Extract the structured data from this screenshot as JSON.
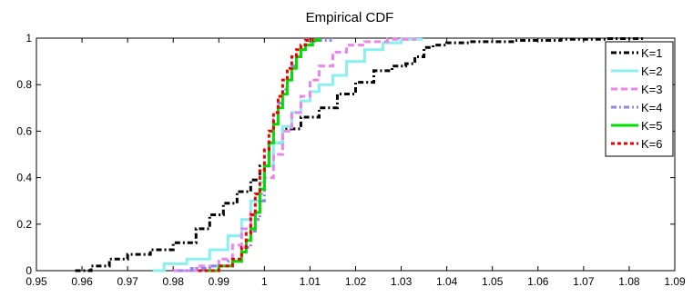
{
  "chart_data": {
    "type": "line",
    "title": "Empirical CDF",
    "xlabel": "",
    "ylabel": "",
    "xlim": [
      0.95,
      1.09
    ],
    "ylim": [
      0,
      1
    ],
    "xticks": [
      "0.95",
      "0.96",
      "0.97",
      "0.98",
      "0.99",
      "1",
      "1.01",
      "1.02",
      "1.03",
      "1.04",
      "1.05",
      "1.06",
      "1.07",
      "1.08",
      "1.09"
    ],
    "yticks": [
      "0",
      "0.2",
      "0.4",
      "0.6",
      "0.8",
      "1"
    ],
    "grid": false,
    "legend_position": "top-right",
    "series": [
      {
        "name": "K=1",
        "color": "#000000",
        "style": "dashdot",
        "x": [
          0.9585,
          0.962,
          0.966,
          0.97,
          0.975,
          0.98,
          0.985,
          0.988,
          0.991,
          0.994,
          0.997,
          0.999,
          1.001,
          1.004,
          1.008,
          1.012,
          1.016,
          1.02,
          1.024,
          1.028,
          1.031,
          1.033,
          1.035,
          1.037,
          1.04,
          1.045,
          1.055,
          1.065,
          1.075,
          1.0835
        ],
        "y": [
          0.0,
          0.02,
          0.05,
          0.07,
          0.09,
          0.12,
          0.18,
          0.24,
          0.29,
          0.34,
          0.39,
          0.45,
          0.55,
          0.61,
          0.66,
          0.7,
          0.76,
          0.81,
          0.86,
          0.88,
          0.89,
          0.92,
          0.96,
          0.97,
          0.98,
          0.985,
          0.99,
          0.995,
          0.998,
          1.0
        ]
      },
      {
        "name": "K=2",
        "color": "#88f0f0",
        "style": "solid",
        "x": [
          0.9755,
          0.978,
          0.983,
          0.988,
          0.992,
          0.995,
          0.997,
          0.999,
          1.0,
          1.002,
          1.004,
          1.006,
          1.008,
          1.01,
          1.012,
          1.015,
          1.018,
          1.022,
          1.026,
          1.03,
          1.0345
        ],
        "y": [
          0.0,
          0.03,
          0.05,
          0.09,
          0.15,
          0.22,
          0.3,
          0.38,
          0.45,
          0.55,
          0.62,
          0.68,
          0.73,
          0.77,
          0.8,
          0.84,
          0.9,
          0.95,
          0.98,
          0.995,
          1.0
        ]
      },
      {
        "name": "K=3",
        "color": "#ee82ee",
        "style": "dashed",
        "x": [
          0.98,
          0.985,
          0.99,
          0.993,
          0.995,
          0.997,
          0.999,
          1.0,
          1.002,
          1.004,
          1.006,
          1.008,
          1.01,
          1.012,
          1.015,
          1.018,
          1.022,
          1.027,
          1.033
        ],
        "y": [
          0.0,
          0.02,
          0.05,
          0.11,
          0.18,
          0.25,
          0.33,
          0.4,
          0.5,
          0.6,
          0.68,
          0.75,
          0.82,
          0.88,
          0.94,
          0.97,
          0.985,
          0.995,
          1.0
        ]
      },
      {
        "name": "K=4",
        "color": "#8888ee",
        "style": "dashdot",
        "x": [
          0.981,
          0.984,
          0.988,
          0.992,
          0.995,
          0.997,
          0.998,
          0.999,
          1.0,
          1.001,
          1.002,
          1.003,
          1.004,
          1.005,
          1.006,
          1.007,
          1.008,
          1.009,
          1.011,
          1.0145
        ],
        "y": [
          0.0,
          0.01,
          0.02,
          0.04,
          0.1,
          0.17,
          0.22,
          0.3,
          0.45,
          0.55,
          0.65,
          0.72,
          0.78,
          0.83,
          0.88,
          0.92,
          0.95,
          0.97,
          0.99,
          1.0
        ]
      },
      {
        "name": "K=5",
        "color": "#00dd00",
        "style": "solid",
        "x": [
          0.987,
          0.99,
          0.993,
          0.995,
          0.996,
          0.997,
          0.998,
          0.999,
          1.0,
          1.001,
          1.002,
          1.003,
          1.004,
          1.005,
          1.006,
          1.007,
          1.008,
          1.009,
          1.0105,
          1.012
        ],
        "y": [
          0.0,
          0.02,
          0.04,
          0.08,
          0.13,
          0.18,
          0.25,
          0.35,
          0.45,
          0.55,
          0.63,
          0.7,
          0.76,
          0.82,
          0.87,
          0.92,
          0.95,
          0.97,
          0.99,
          1.0
        ]
      },
      {
        "name": "K=6",
        "color": "#ee0000",
        "style": "dotted",
        "x": [
          0.9855,
          0.99,
          0.993,
          0.995,
          0.996,
          0.997,
          0.998,
          0.999,
          1.0,
          1.001,
          1.002,
          1.003,
          1.004,
          1.005,
          1.006,
          1.007,
          1.008,
          1.009,
          1.0105
        ],
        "y": [
          0.0,
          0.02,
          0.05,
          0.1,
          0.16,
          0.24,
          0.33,
          0.43,
          0.52,
          0.6,
          0.68,
          0.75,
          0.82,
          0.87,
          0.92,
          0.95,
          0.97,
          0.99,
          1.0
        ]
      }
    ]
  }
}
